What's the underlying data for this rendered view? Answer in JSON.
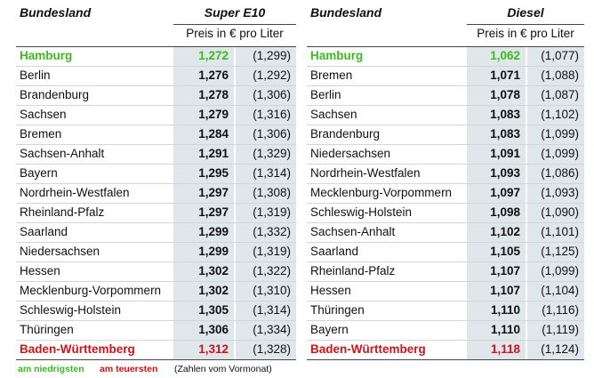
{
  "tables": [
    {
      "header": {
        "region": "Bundesland",
        "fuel": "Super E10",
        "unit": "Preis in € pro Liter"
      },
      "rows": [
        [
          "Hamburg",
          "1,272",
          "(1,299)"
        ],
        [
          "Berlin",
          "1,276",
          "(1,292)"
        ],
        [
          "Brandenburg",
          "1,278",
          "(1,306)"
        ],
        [
          "Sachsen",
          "1,279",
          "(1,316)"
        ],
        [
          "Bremen",
          "1,284",
          "(1,306)"
        ],
        [
          "Sachsen-Anhalt",
          "1,291",
          "(1,329)"
        ],
        [
          "Bayern",
          "1,295",
          "(1,314)"
        ],
        [
          "Nordrhein-Westfalen",
          "1,297",
          "(1,308)"
        ],
        [
          "Rheinland-Pfalz",
          "1,297",
          "(1,319)"
        ],
        [
          "Saarland",
          "1,299",
          "(1,332)"
        ],
        [
          "Niedersachsen",
          "1,299",
          "(1,319)"
        ],
        [
          "Hessen",
          "1,302",
          "(1,322)"
        ],
        [
          "Mecklenburg-Vorpommern",
          "1,302",
          "(1,310)"
        ],
        [
          "Schleswig-Holstein",
          "1,305",
          "(1,314)"
        ],
        [
          "Thüringen",
          "1,306",
          "(1,334)"
        ],
        [
          "Baden-Württemberg",
          "1,312",
          "(1,328)"
        ]
      ]
    },
    {
      "header": {
        "region": "Bundesland",
        "fuel": "Diesel",
        "unit": "Preis in € pro Liter"
      },
      "rows": [
        [
          "Hamburg",
          "1,062",
          "(1,077)"
        ],
        [
          "Bremen",
          "1,071",
          "(1,088)"
        ],
        [
          "Berlin",
          "1,078",
          "(1,087)"
        ],
        [
          "Sachsen",
          "1,083",
          "(1,102)"
        ],
        [
          "Brandenburg",
          "1,083",
          "(1,099)"
        ],
        [
          "Niedersachsen",
          "1,091",
          "(1,099)"
        ],
        [
          "Nordrhein-Westfalen",
          "1,093",
          "(1,086)"
        ],
        [
          "Mecklenburg-Vorpommern",
          "1,097",
          "(1,093)"
        ],
        [
          "Schleswig-Holstein",
          "1,098",
          "(1,090)"
        ],
        [
          "Sachsen-Anhalt",
          "1,102",
          "(1,101)"
        ],
        [
          "Saarland",
          "1,105",
          "(1,125)"
        ],
        [
          "Rheinland-Pfalz",
          "1,107",
          "(1,099)"
        ],
        [
          "Hessen",
          "1,107",
          "(1,104)"
        ],
        [
          "Thüringen",
          "1,110",
          "(1,116)"
        ],
        [
          "Bayern",
          "1,110",
          "(1,119)"
        ],
        [
          "Baden-Württemberg",
          "1,118",
          "(1,124)"
        ]
      ]
    }
  ],
  "legend": {
    "lowest": "am niedrigsten",
    "highest": "am teuersten",
    "note": "(Zahlen vom Vormonat)"
  }
}
